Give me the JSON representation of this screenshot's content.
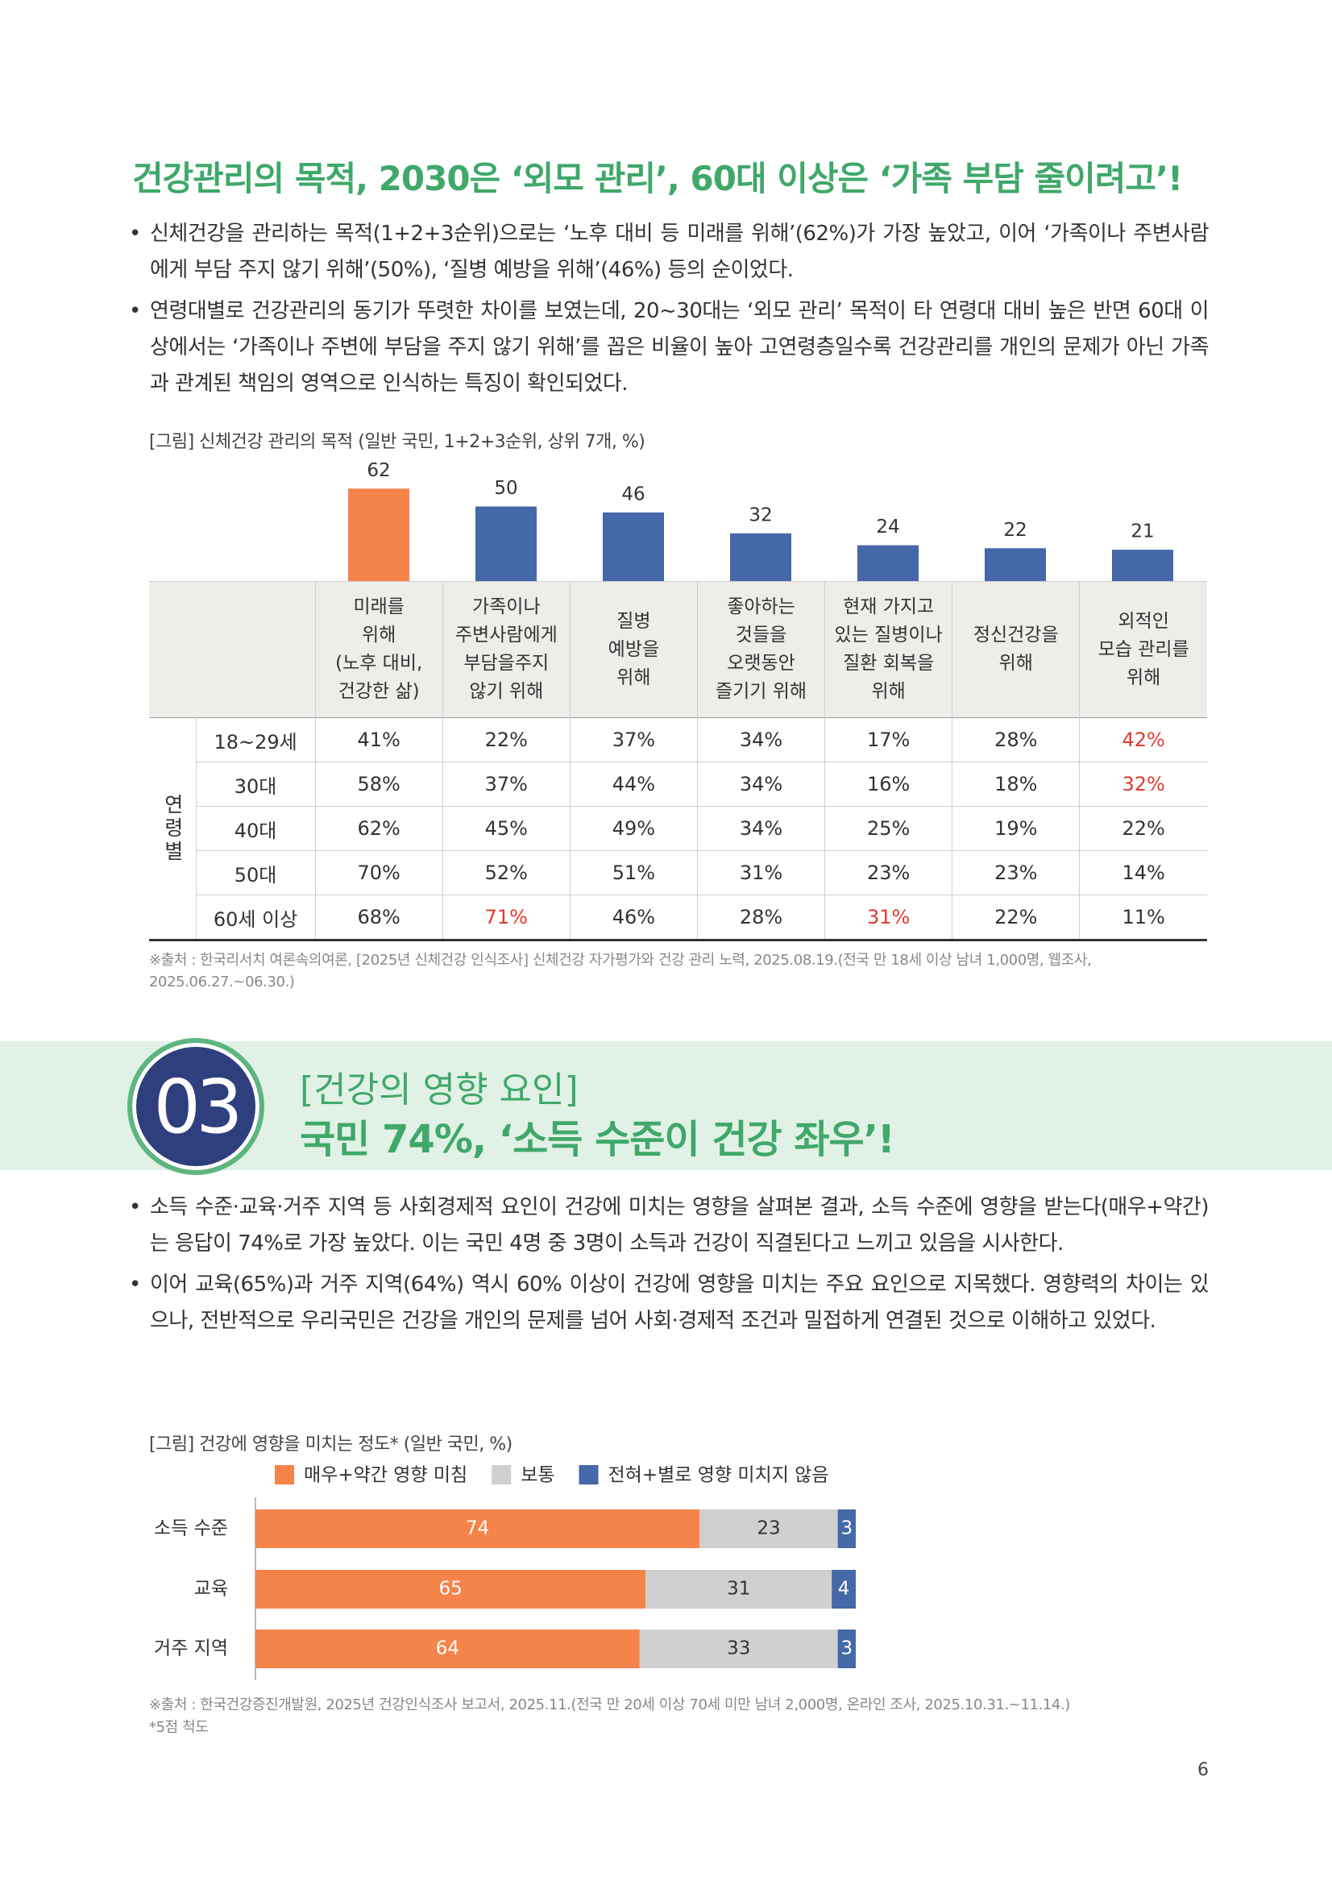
{
  "header": {
    "title": "건강관리의 목적, 2030은 ‘외모 관리’, 60대 이상은 ‘가족 부담 줄이려고’!"
  },
  "bullets_1": [
    "신체건강을 관리하는 목적(1+2+3순위)으로는 ‘노후 대비 등 미래를 위해’(62%)가 가장 높았고, 이어 ‘가족이나 주변사람에게 부담 주지 않기 위해’(50%), ‘질병 예방을 위해’(46%) 등의 순이었다.",
    "연령대별로 건강관리의 동기가 뚜렷한 차이를 보였는데, 20~30대는 ‘외모 관리’ 목적이 타 연령대 대비 높은 반면 60대 이상에서는 ‘가족이나 주변에 부담을 주지 않기 위해’를 꼽은 비율이 높아 고연령층일수록 건강관리를 개인의 문제가 아닌 가족과 관계된 책임의 영역으로 인식하는 특징이 확인되었다."
  ],
  "chart_data": [
    {
      "type": "bar",
      "title": "[그림] 신체건강 관리의 목적 (일반 국민, 1+2+3순위, 상위 7개, %)",
      "categories": [
        "미래를\n위해\n(노후 대비,\n건강한 삶)",
        "가족이나\n주변사람에게\n부담을주지\n않기 위해",
        "질병\n예방을\n위해",
        "좋아하는\n것들을\n오랫동안\n즐기기 위해",
        "현재 가지고\n있는 질병이나\n질환 회복을\n위해",
        "정신건강을\n위해",
        "외적인\n모습 관리를\n위해"
      ],
      "values": [
        62,
        50,
        46,
        32,
        24,
        22,
        21
      ],
      "colors": [
        "#f4844a",
        "#4468a8",
        "#4468a8",
        "#4468a8",
        "#4468a8",
        "#4468a8",
        "#4468a8"
      ],
      "table": {
        "group_label": "연령별",
        "highlight_color": "#e03a2f",
        "rows": [
          {
            "label": "18~29세",
            "cells": [
              "41%",
              "22%",
              "37%",
              "34%",
              "17%",
              "28%",
              "42%"
            ],
            "highlight": [
              6
            ]
          },
          {
            "label": "30대",
            "cells": [
              "58%",
              "37%",
              "44%",
              "34%",
              "16%",
              "18%",
              "32%"
            ],
            "highlight": [
              6
            ]
          },
          {
            "label": "40대",
            "cells": [
              "62%",
              "45%",
              "49%",
              "34%",
              "25%",
              "19%",
              "22%"
            ],
            "highlight": []
          },
          {
            "label": "50대",
            "cells": [
              "70%",
              "52%",
              "51%",
              "31%",
              "23%",
              "23%",
              "14%"
            ],
            "highlight": []
          },
          {
            "label": "60세 이상",
            "cells": [
              "68%",
              "71%",
              "46%",
              "28%",
              "31%",
              "22%",
              "11%"
            ],
            "highlight": [
              1,
              4
            ]
          }
        ]
      },
      "source": "※출처 : 한국리서치 여론속의여론, [2025년 신체건강 인식조사] 신체건강 자가평가와 건강 관리 노력, 2025.08.19.(전국 만 18세 이상 남녀 1,000명, 웹조사, 2025.06.27.~06.30.)"
    },
    {
      "type": "stacked-bar-horizontal",
      "title": "[그림] 건강에 영향을 미치는 정도* (일반 국민, %)",
      "categories": [
        "소득 수준",
        "교육",
        "거주 지역"
      ],
      "series": [
        {
          "name": "매우+약간 영향 미침",
          "color": "#f4844a",
          "label_color": "#ffffff",
          "values": [
            74,
            65,
            64
          ]
        },
        {
          "name": "보통",
          "color": "#d0d0d0",
          "label_color": "#333333",
          "values": [
            23,
            31,
            33
          ]
        },
        {
          "name": "전혀+별로 영향 미치지 않음",
          "color": "#4468a8",
          "label_color": "#ffffff",
          "values": [
            3,
            4,
            3
          ]
        }
      ],
      "source": [
        "※출처 : 한국건강증진개발원, 2025년 건강인식조사 보고서, 2025.11.(전국 만 20세 이상 70세 미만 남녀 2,000명, 온라인 조사, 2025.10.31.~11.14.)",
        "*5점 척도"
      ]
    }
  ],
  "section": {
    "number": "03",
    "subtitle": "[건강의 영향 요인]",
    "headline": "국민 74%, ‘소득 수준이 건강 좌우’!"
  },
  "bullets_2": [
    "소득 수준·교육·거주 지역 등 사회경제적 요인이 건강에 미치는 영향을 살펴본 결과, 소득 수준에 영향을 받는다(매우+약간)는 응답이 74%로 가장 높았다. 이는 국민 4명 중 3명이 소득과 건강이 직결된다고 느끼고 있음을 시사한다.",
    "이어 교육(65%)과 거주 지역(64%) 역시 60% 이상이 건강에 영향을 미치는 주요 요인으로 지목했다. 영향력의 차이는 있으나, 전반적으로 우리국민은 건강을 개인의 문제를 넘어 사회·경제적 조건과 밀접하게 연결된 것으로 이해하고 있었다."
  ],
  "footer": {
    "page_number": "6"
  }
}
